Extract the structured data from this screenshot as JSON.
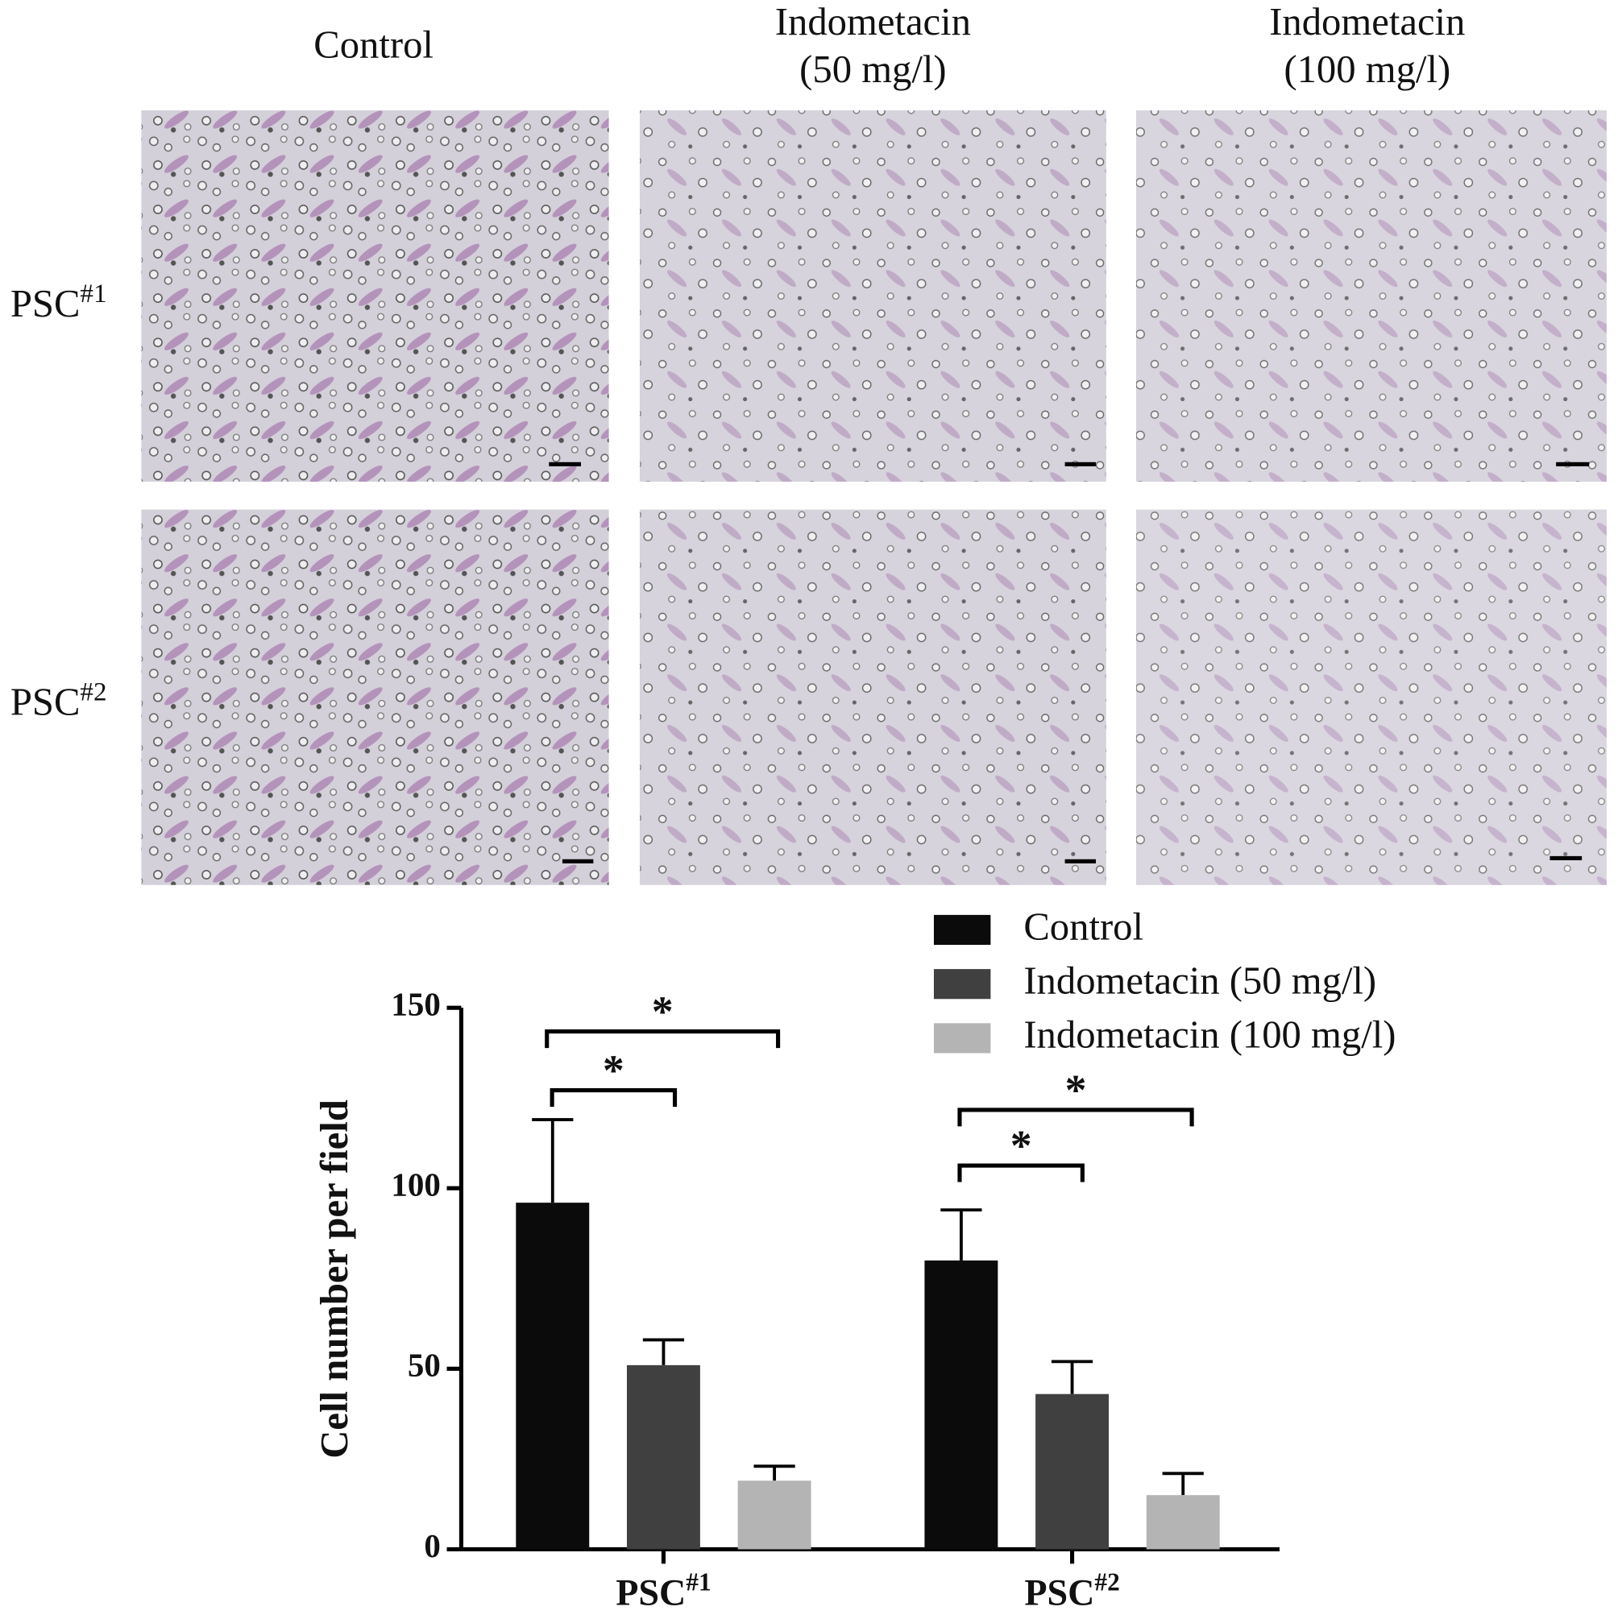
{
  "micrographs": {
    "columns": [
      [
        "Control"
      ],
      [
        "Indometacin",
        "(50 mg/l)"
      ],
      [
        "Indometacin",
        "(100 mg/l)"
      ]
    ],
    "rows": [
      "PSC#1",
      "PSC#2"
    ]
  },
  "chart_data": {
    "type": "bar",
    "y_label": "Cell number per field",
    "categories": [
      "PSC#1",
      "PSC#2"
    ],
    "series": [
      {
        "name": "Control",
        "color": "#0b0b0b",
        "values": [
          96,
          80
        ],
        "errors": [
          23,
          14
        ]
      },
      {
        "name": "Indometacin (50 mg/l)",
        "color": "#404040",
        "values": [
          51,
          43
        ],
        "errors": [
          7,
          9
        ]
      },
      {
        "name": "Indometacin (100 mg/l)",
        "color": "#b4b4b4",
        "values": [
          19,
          15
        ],
        "errors": [
          4,
          6
        ]
      }
    ],
    "ylim": [
      0,
      150
    ],
    "yticks": [
      0,
      50,
      100,
      150
    ],
    "annotations": [
      "*",
      "*",
      "*",
      "*"
    ],
    "grid": false
  }
}
